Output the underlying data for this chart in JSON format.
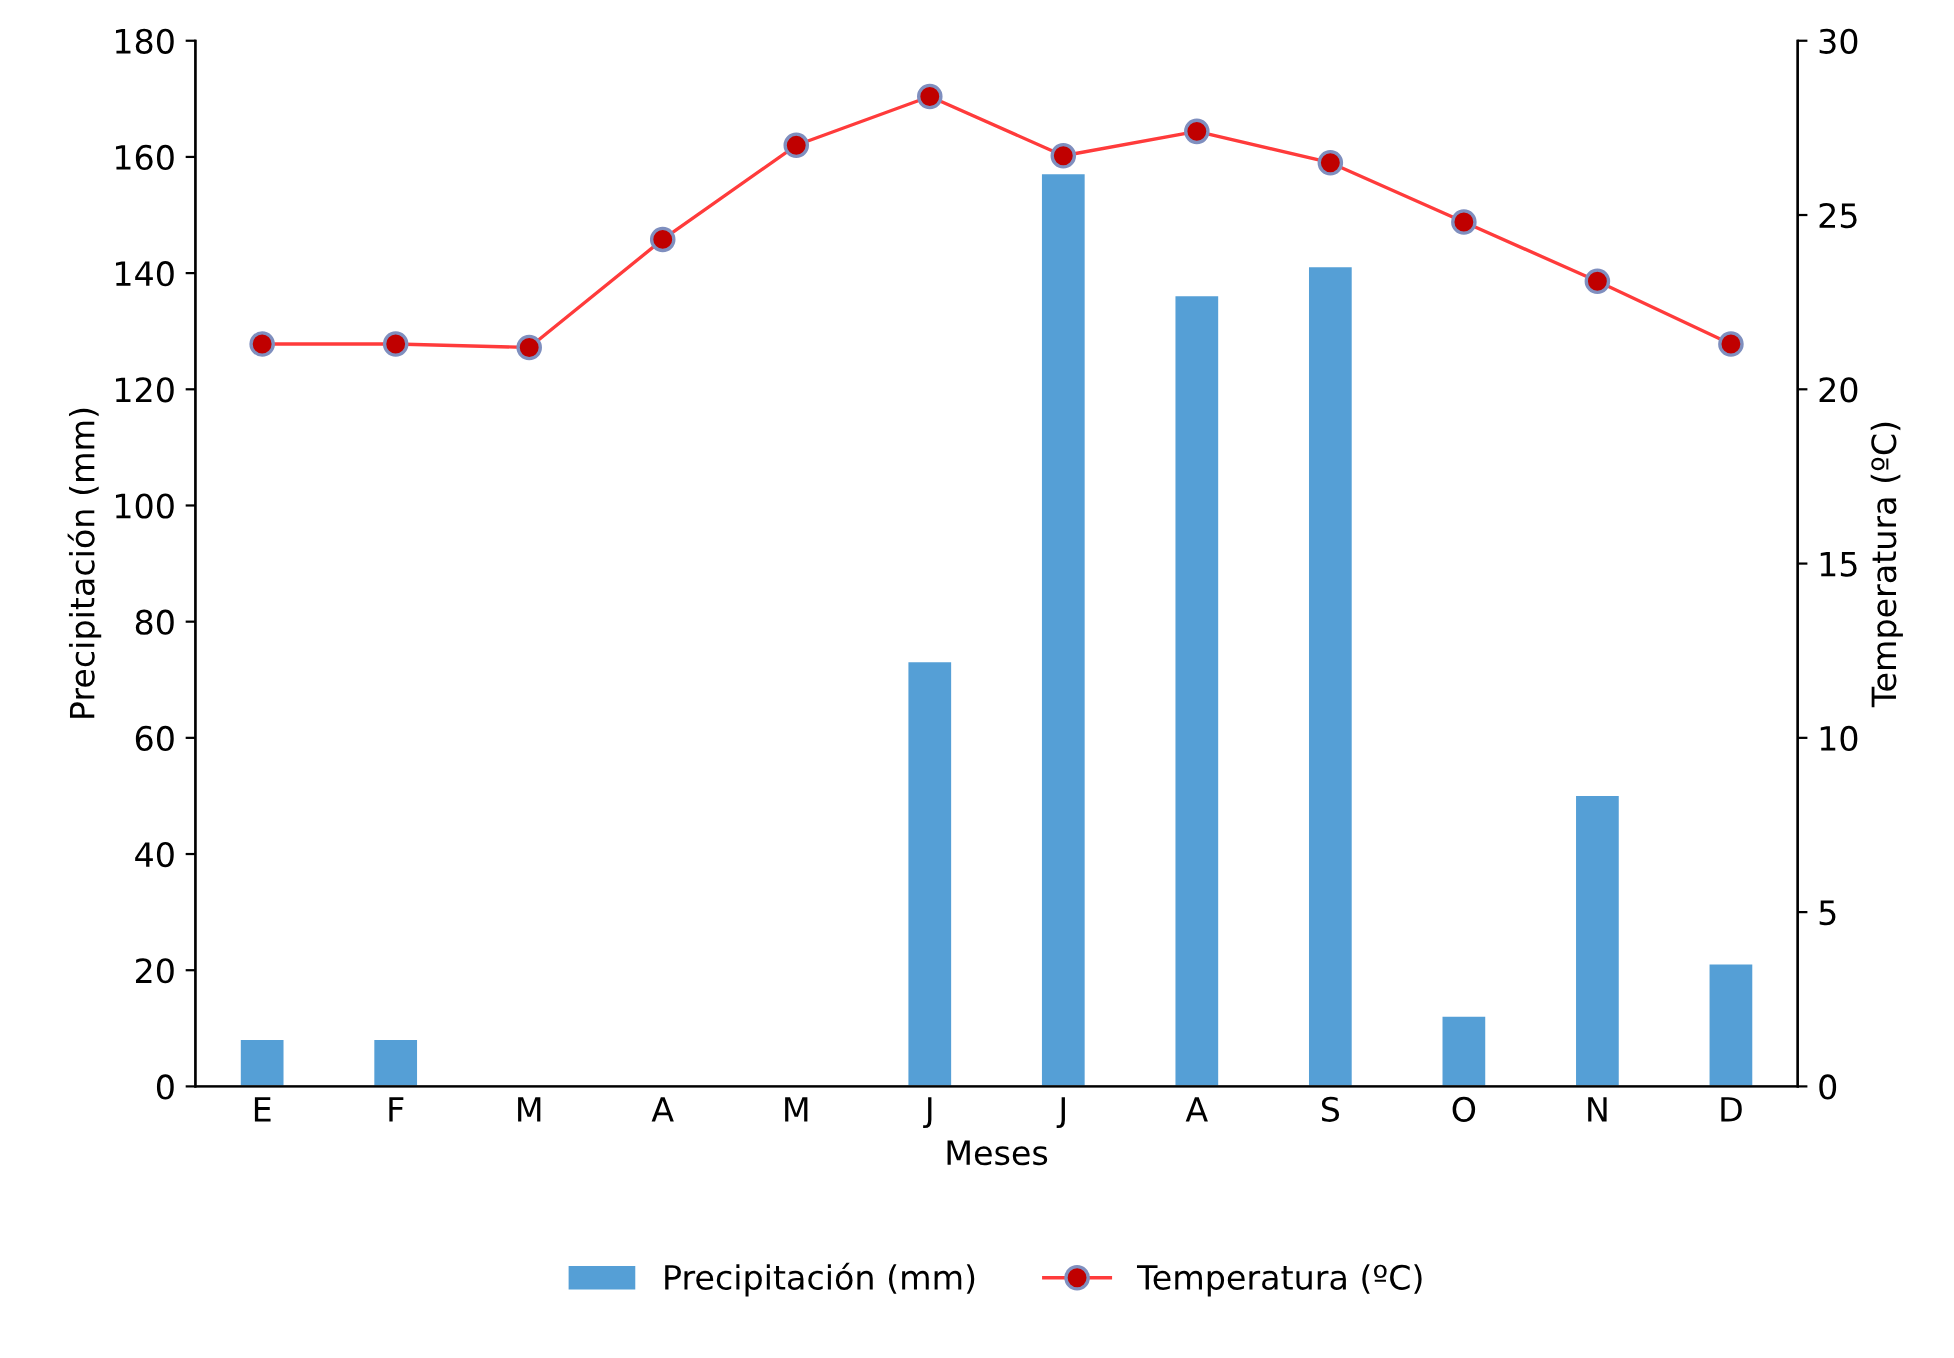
{
  "chart_data": {
    "type": "bar",
    "xlabel": "Meses",
    "ylabel": "Precipitación (mm)",
    "y2label": "Temperatura (ºC)",
    "categories": [
      "E",
      "F",
      "M",
      "A",
      "M",
      "J",
      "J",
      "A",
      "S",
      "O",
      "N",
      "D"
    ],
    "series": [
      {
        "name": "Precipitación (mm)",
        "color": "#559fd6",
        "values": [
          8,
          8,
          0,
          0,
          0,
          73,
          157,
          136,
          141,
          12,
          50,
          21
        ]
      },
      {
        "name": "Temperatura (ºC)",
        "type": "line",
        "axis": "y2",
        "color": "#ff3b3b",
        "marker": "circle",
        "values": [
          21.3,
          21.3,
          21.2,
          24.3,
          27.0,
          28.4,
          26.7,
          27.4,
          26.5,
          24.8,
          23.1,
          21.3
        ]
      }
    ],
    "ylim": [
      0,
      180
    ],
    "yticks": [
      0,
      20,
      40,
      60,
      80,
      100,
      120,
      140,
      160,
      180
    ],
    "y2lim": [
      0,
      30
    ],
    "y2ticks": [
      0,
      5,
      10,
      15,
      20,
      25,
      30
    ],
    "grid": false,
    "legend": "bottom"
  }
}
